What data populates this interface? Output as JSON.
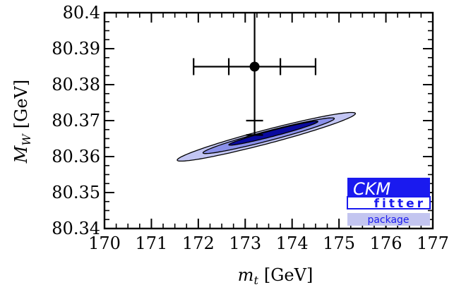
{
  "chart_data": {
    "type": "contour",
    "xlabel": {
      "symbol": "m",
      "sub": "t",
      "unit": "[GeV]"
    },
    "ylabel": {
      "symbol": "M",
      "sub": "W",
      "unit": "[GeV]"
    },
    "xlim": [
      170,
      177
    ],
    "ylim": [
      80.34,
      80.4
    ],
    "x_ticks": [
      170,
      171,
      172,
      173,
      174,
      175,
      176,
      177
    ],
    "y_ticks": [
      80.34,
      80.35,
      80.36,
      80.37,
      80.38,
      80.39,
      80.4
    ],
    "x_tick_labels": [
      "170",
      "171",
      "172",
      "173",
      "174",
      "175",
      "176",
      "177"
    ],
    "y_tick_labels": [
      "80.34",
      "80.35",
      "80.36",
      "80.37",
      "80.38",
      "80.39",
      "80.4"
    ],
    "contours": [
      {
        "level": "3sigma",
        "color": "#c2c5f3",
        "center": [
          173.45,
          80.3655
        ],
        "semi_axes_x": [
          1.9,
          0.2
        ],
        "angle": 0.34
      },
      {
        "level": "2sigma",
        "color": "#8a90ea",
        "center": [
          173.5,
          80.3658
        ],
        "semi_axes_x": [
          1.4,
          0.14
        ],
        "angle": 0.34
      },
      {
        "level": "1sigma",
        "color": "#0a0a9e",
        "center": [
          173.6,
          80.3665
        ],
        "semi_axes_x": [
          0.95,
          0.085
        ],
        "angle": 0.34
      }
    ],
    "measurement": {
      "x": 173.2,
      "y": 80.385,
      "x_err_stat": 0.55,
      "x_err_total": 1.3,
      "y_err_stat": 0.015,
      "y_err_total": 0.019
    },
    "logo": {
      "title": "CKM",
      "subtitle": "fitter",
      "footer": "package"
    }
  }
}
